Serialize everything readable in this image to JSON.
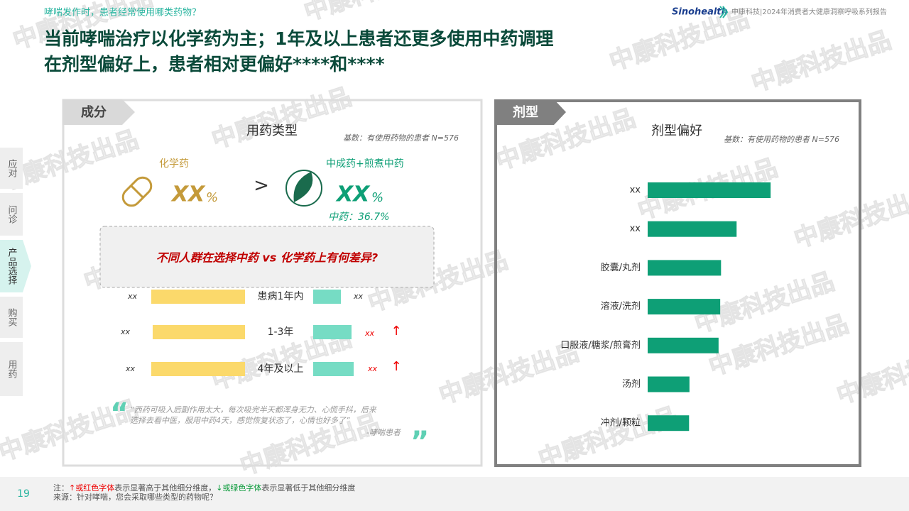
{
  "header": {
    "question": "哮喘发作时，患者经常使用哪类药物？",
    "brand": "Sinohealth",
    "report": "中康科技|2024年消费者大健康洞察呼吸系列报告"
  },
  "title": [
    "当前哮喘治疗以化学药为主；1年及以上患者还更多使用中药调理",
    "在剂型偏好上，患者相对更偏好****和****"
  ],
  "nav": [
    "应对",
    "问诊",
    "产品选择",
    "购买",
    "用药"
  ],
  "left": {
    "tag": "成分",
    "heading": "用药类型",
    "base": "基数：有使用药物的患者 N=576",
    "chem_label": "化学药",
    "chem_value": "XX",
    "pct": "%",
    "gt": ">",
    "tcm_label": "中成药+煎煮中药",
    "tcm_value": "XX",
    "tcm_note": "中药：36.7%",
    "question": "不同人群在选择中药 vs 化学药上有何差异?",
    "groups": [
      {
        "label": "患病1年内",
        "left": "xx",
        "right": "xx"
      },
      {
        "label": "1-3年",
        "left": "xx",
        "right": "xx",
        "arrow": "↑"
      },
      {
        "label": "4年及以上",
        "left": "xx",
        "right": "xx",
        "arrow": "↑"
      }
    ],
    "quote": [
      "“西药可吸入后副作用太大，每次吸完半天都浑身无力、心慌手抖，后来",
      "选择去看中医，服用中药4天，感觉恢复状态了，心情也好多了”"
    ],
    "quote_author": "-哮喘患者"
  },
  "chart_data": {
    "type": "bar",
    "tag": "剂型",
    "title": "剂型偏好",
    "subtitle": "基数：有使用药物的患者 N=576",
    "categories": [
      "xx",
      "xx",
      "胶囊/丸剂",
      "溶液/洗剂",
      "口服液/糖浆/煎膏剂",
      "汤剂",
      "冲剂/颗粒"
    ],
    "values": [
      30,
      21.7,
      17.9,
      17.7,
      17.3,
      10.2,
      10.1
    ],
    "color": "#0e9f76",
    "xlim": [
      0,
      35
    ]
  },
  "watermark": "中康科技出品",
  "footer": {
    "page": "19",
    "note_prefix": "注：",
    "note_up": "↑或红色字体",
    "note_mid": "表示显著高于其他细分维度，",
    "note_down": "↓或绿色字体",
    "note_end": "表示显著低于其他细分维度",
    "source": "来源：针对哮喘，您会采取哪些类型的药物呢？"
  }
}
